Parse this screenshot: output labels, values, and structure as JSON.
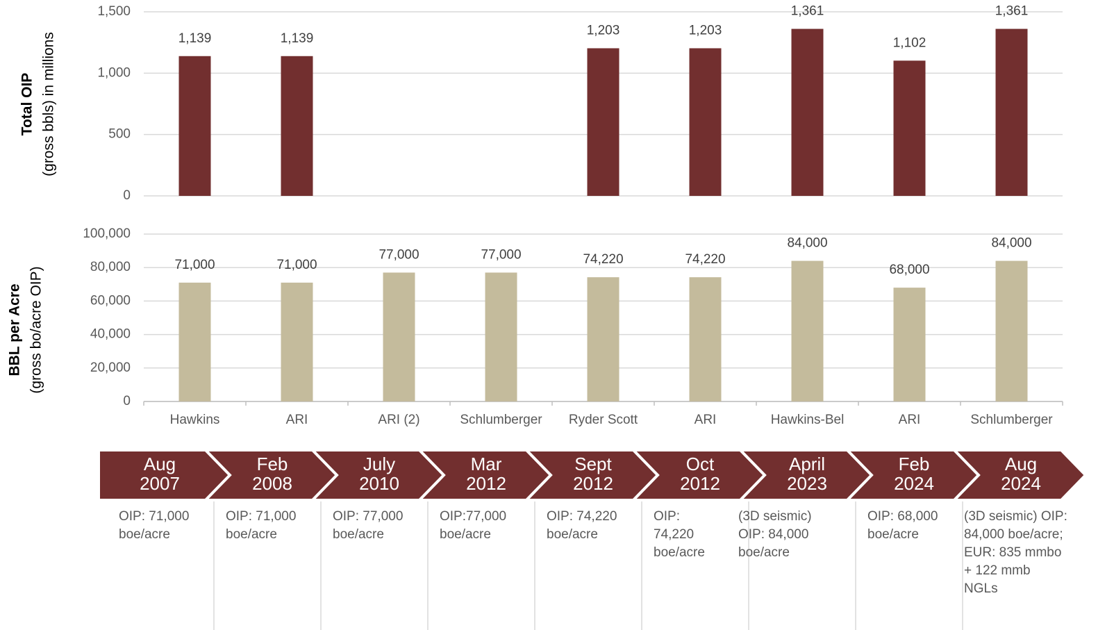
{
  "chart_data": [
    {
      "type": "bar",
      "ylabel": "Total OIP",
      "ylabel_sub": "(gross bbls) in millions",
      "values": [
        1139,
        1139,
        null,
        null,
        1203,
        1203,
        1361,
        1102,
        1361
      ],
      "value_labels": [
        "1,139",
        "1,139",
        null,
        null,
        "1,203",
        "1,203",
        "1,361",
        "1,102",
        "1,361"
      ],
      "color": "#722f2f",
      "ylim": [
        0,
        1500
      ],
      "yticks": [
        0,
        500,
        {
          "value": 1000,
          "label": "1,000"
        },
        {
          "value": 1500,
          "label": "1,500"
        }
      ],
      "grid": true
    },
    {
      "type": "bar",
      "ylabel": "BBL per Acre",
      "ylabel_sub": "(gross bo/acre OIP)",
      "categories": [
        "Hawkins",
        "ARI",
        "ARI (2)",
        "Schlumberger",
        "Ryder Scott",
        "ARI",
        "Hawkins-Bel",
        "ARI",
        "Schlumberger"
      ],
      "values": [
        71000,
        71000,
        77000,
        77000,
        74220,
        74220,
        84000,
        68000,
        84000
      ],
      "value_labels": [
        "71,000",
        "71,000",
        "77,000",
        "77,000",
        "74,220",
        "74,220",
        "84,000",
        "68,000",
        "84,000"
      ],
      "color": "#c4bb9c",
      "ylim": [
        0,
        100000
      ],
      "yticks": [
        0,
        {
          "value": 20000,
          "label": "20,000"
        },
        {
          "value": 40000,
          "label": "40,000"
        },
        {
          "value": 60000,
          "label": "60,000"
        },
        {
          "value": 80000,
          "label": "80,000"
        },
        {
          "value": 100000,
          "label": "100,000"
        }
      ],
      "grid": true
    }
  ],
  "timeline": [
    {
      "date": [
        "Aug",
        "2007"
      ],
      "note": [
        "OIP: 71,000",
        "boe/acre"
      ]
    },
    {
      "date": [
        "Feb",
        "2008"
      ],
      "note": [
        "OIP: 71,000",
        "boe/acre"
      ]
    },
    {
      "date": [
        "July",
        "2010"
      ],
      "note": [
        "OIP: 77,000",
        "boe/acre"
      ]
    },
    {
      "date": [
        "Mar",
        "2012"
      ],
      "note": [
        "OIP:77,000",
        "boe/acre"
      ]
    },
    {
      "date": [
        "Sept",
        "2012"
      ],
      "note": [
        "OIP: 74,220",
        "boe/acre"
      ]
    },
    {
      "date": [
        "Oct",
        "2012"
      ],
      "note": [
        "OIP:",
        "74,220",
        "boe/acre"
      ]
    },
    {
      "date": [
        "April",
        "2023"
      ],
      "note": [
        "(3D seismic)",
        "OIP: 84,000",
        "boe/acre"
      ]
    },
    {
      "date": [
        "Feb",
        "2024"
      ],
      "note": [
        "OIP: 68,000",
        "boe/acre"
      ]
    },
    {
      "date": [
        "Aug",
        "2024"
      ],
      "note": [
        "(3D seismic) OIP:",
        "84,000 boe/acre;",
        "EUR: 835 mmbo",
        "+ 122 mmb",
        "NGLs"
      ]
    }
  ]
}
